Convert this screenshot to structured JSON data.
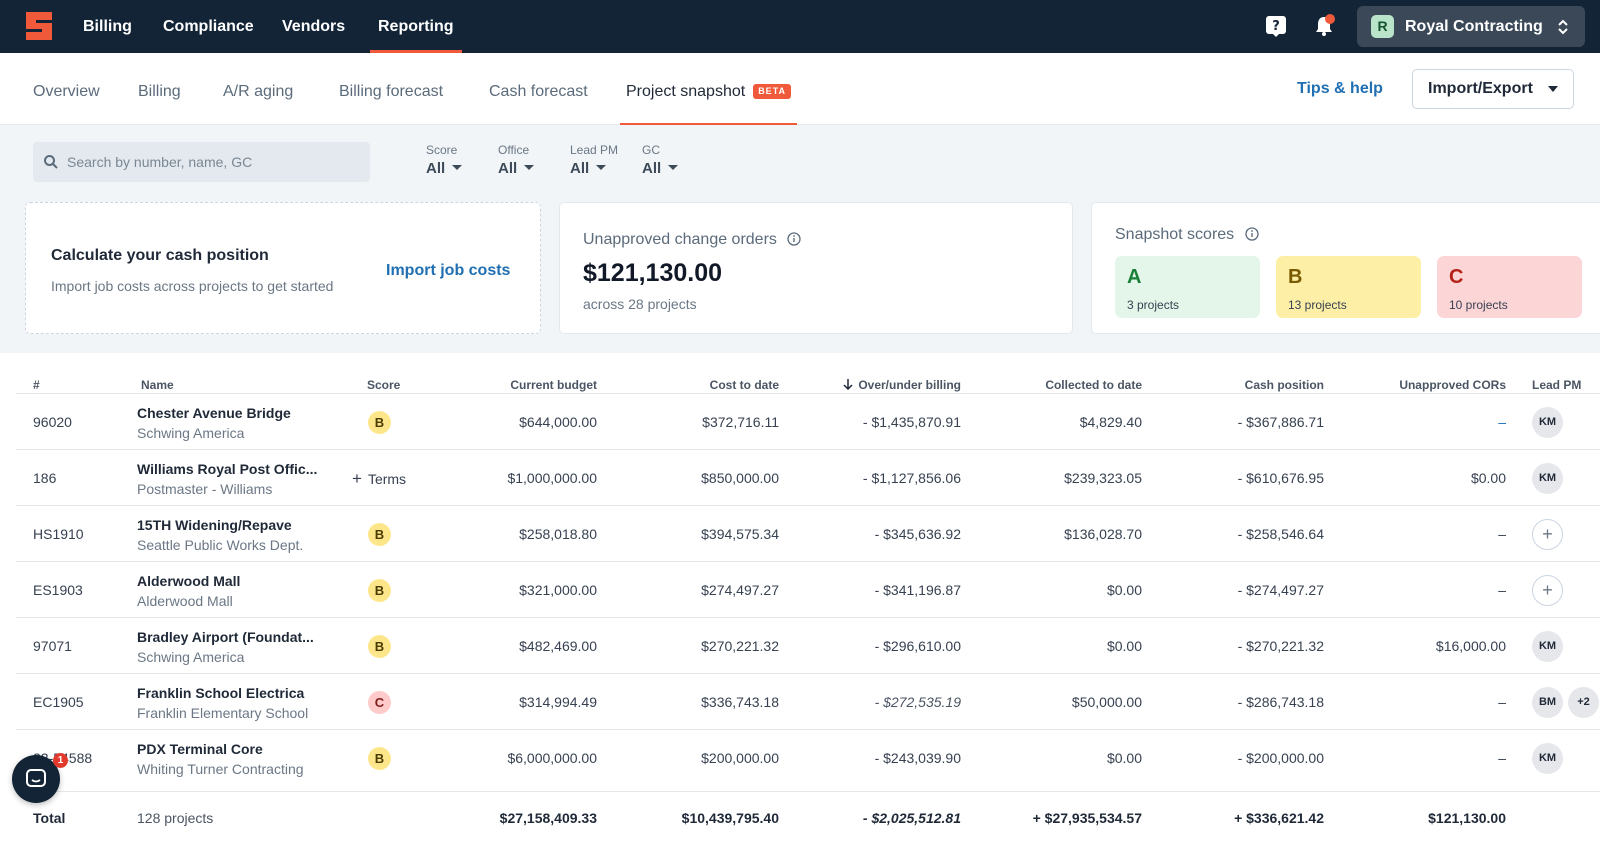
{
  "topnav": {
    "items": [
      "Billing",
      "Compliance",
      "Vendors",
      "Reporting"
    ],
    "active": "Reporting",
    "company": {
      "initial": "R",
      "name": "Royal Contracting"
    }
  },
  "subnav": {
    "tabs": [
      "Overview",
      "Billing",
      "A/R aging",
      "Billing forecast",
      "Cash forecast",
      "Project snapshot"
    ],
    "active": "Project snapshot",
    "beta_label": "BETA",
    "tips_label": "Tips & help",
    "import_export_label": "Import/Export"
  },
  "filters": {
    "search_placeholder": "Search by number, name, GC",
    "items": [
      {
        "label": "Score",
        "value": "All"
      },
      {
        "label": "Office",
        "value": "All"
      },
      {
        "label": "Lead PM",
        "value": "All"
      },
      {
        "label": "GC",
        "value": "All"
      }
    ]
  },
  "cash_card": {
    "title": "Calculate your cash position",
    "subtitle": "Import job costs across projects to get started",
    "link": "Import job costs"
  },
  "cor_card": {
    "title": "Unapproved change orders",
    "amount": "$121,130.00",
    "subtitle": "across 28 projects"
  },
  "scores_card": {
    "title": "Snapshot scores",
    "scores": [
      {
        "letter": "A",
        "count": "3 projects",
        "bg": "#e3f6e9",
        "fg": "#1a7f37"
      },
      {
        "letter": "B",
        "count": "13 projects",
        "bg": "#fdf0a6",
        "fg": "#7a5a00"
      },
      {
        "letter": "C",
        "count": "10 projects",
        "bg": "#fcd5d7",
        "fg": "#b42318"
      }
    ]
  },
  "table": {
    "columns": [
      "#",
      "Name",
      "Score",
      "Current budget",
      "Cost to date",
      "Over/under billing",
      "Collected to date",
      "Cash position",
      "Unapproved CORs",
      "Lead PM"
    ],
    "rows": [
      {
        "number": "96020",
        "name": "Chester Avenue Bridge",
        "gc": "Schwing America",
        "score": "B",
        "budget": "$644,000.00",
        "cost": "$372,716.11",
        "overunder": "- $1,435,870.91",
        "collected": "$4,829.40",
        "cash": "- $367,886.71",
        "cors": "–",
        "pm": [
          "KM"
        ]
      },
      {
        "number": "186",
        "name": "Williams Royal Post Offic...",
        "gc": "Postmaster - Williams",
        "score": "",
        "terms": "Terms",
        "budget": "$1,000,000.00",
        "cost": "$850,000.00",
        "overunder": "- $1,127,856.06",
        "collected": "$239,323.05",
        "cash": "- $610,676.95",
        "cors": "$0.00",
        "pm": [
          "KM"
        ]
      },
      {
        "number": "HS1910",
        "name": "15TH Widening/Repave",
        "gc": "Seattle Public Works Dept.",
        "score": "B",
        "budget": "$258,018.80",
        "cost": "$394,575.34",
        "overunder": "- $345,636.92",
        "collected": "$136,028.70",
        "cash": "- $258,546.64",
        "cors": "–",
        "pm": []
      },
      {
        "number": "ES1903",
        "name": "Alderwood Mall",
        "gc": "Alderwood Mall",
        "score": "B",
        "budget": "$321,000.00",
        "cost": "$274,497.27",
        "overunder": "- $341,196.87",
        "collected": "$0.00",
        "cash": "- $274,497.27",
        "cors": "–",
        "pm": []
      },
      {
        "number": "97071",
        "name": "Bradley Airport (Foundat...",
        "gc": "Schwing America",
        "score": "B",
        "budget": "$482,469.00",
        "cost": "$270,221.32",
        "overunder": "- $296,610.00",
        "collected": "$0.00",
        "cash": "- $270,221.32",
        "cors": "$16,000.00",
        "pm": [
          "KM"
        ]
      },
      {
        "number": "EC1905",
        "name": "Franklin School Electrica",
        "gc": "Franklin Elementary School",
        "score": "C",
        "budget": "$314,994.49",
        "cost": "$336,743.18",
        "overunder": "- $272,535.19",
        "overunder_italic": true,
        "collected": "$50,000.00",
        "cash": "- $286,743.18",
        "cors": "–",
        "pm": [
          "BM",
          "+2"
        ]
      },
      {
        "number": "22-54588",
        "name": "PDX Terminal Core",
        "gc": "Whiting Turner Contracting",
        "score": "B",
        "budget": "$6,000,000.00",
        "cost": "$200,000.00",
        "overunder": "- $243,039.90",
        "collected": "$0.00",
        "cash": "- $200,000.00",
        "cors": "–",
        "pm": [
          "KM"
        ]
      }
    ],
    "total": {
      "label": "Total",
      "count": "128 projects",
      "budget": "$27,158,409.33",
      "cost": "$10,439,795.40",
      "overunder": "- $2,025,512.81",
      "collected": "+ $27,935,534.57",
      "cash": "+ $336,621.42",
      "cors": "$121,130.00"
    }
  },
  "chat": {
    "badge": "1"
  },
  "colors": {
    "nav_bg": "#132437",
    "accent": "#f05a3b",
    "link": "#1f6fb2"
  }
}
